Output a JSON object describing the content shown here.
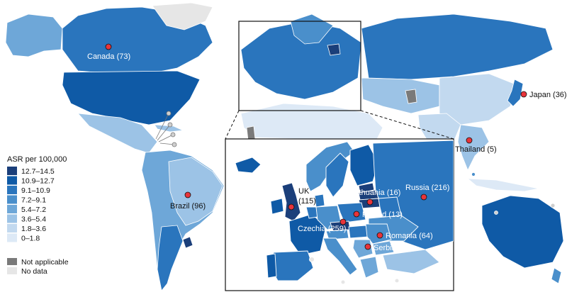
{
  "legend": {
    "title": "ASR per 100,000",
    "bins": [
      {
        "label": "12.7–14.5",
        "color": "#1b3f7a"
      },
      {
        "label": "10.9–12.7",
        "color": "#0f5aa6"
      },
      {
        "label": "9.1–10.9",
        "color": "#2a75bd"
      },
      {
        "label": "7.2–9.1",
        "color": "#4a8fcb"
      },
      {
        "label": "5.4–7.2",
        "color": "#6ea7d8"
      },
      {
        "label": "3.6–5.4",
        "color": "#9cc3e6"
      },
      {
        "label": "1.8–3.6",
        "color": "#c2d9ef"
      },
      {
        "label": "0–1.8",
        "color": "#dde9f6"
      }
    ],
    "not_applicable": {
      "label": "Not applicable",
      "color": "#7a7a7a"
    },
    "no_data": {
      "label": "No data",
      "color": "#e6e6e6"
    }
  },
  "world_markers": {
    "canada": "Canada (73)",
    "brazil": "Brazil (96)",
    "japan": "Japan (36)",
    "thailand": "Thailand (5)"
  },
  "inset_markers": {
    "uk": "UK",
    "uk_count": "(115)",
    "lithuania": "Lithuania (16)",
    "russia": "Russia (216)",
    "poland": "Poland (13)",
    "czechia": "Czechia (259)",
    "romania": "Romania (64)",
    "serbia": "Serbia (69)"
  },
  "colors": {
    "marker": "#e8343a",
    "border": "#ffffff",
    "frame": "#111111"
  }
}
